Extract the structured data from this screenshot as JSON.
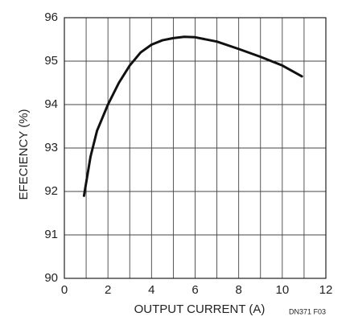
{
  "chart_data": {
    "type": "line",
    "x_label": "OUTPUT CURRENT (A)",
    "y_label": "EFECIENCY (%)",
    "annotation": "DN371 F03",
    "xlim": [
      0,
      12
    ],
    "xticks": [
      0,
      2,
      4,
      6,
      8,
      10,
      12
    ],
    "xminorticks": [
      1,
      3,
      5,
      7,
      9,
      11
    ],
    "ylim": [
      90,
      96
    ],
    "yticks": [
      90,
      91,
      92,
      93,
      94,
      95,
      96
    ],
    "grid": true,
    "series": [
      {
        "color": "#111111",
        "x": [
          0.9,
          1.2,
          1.5,
          2,
          2.5,
          3,
          3.5,
          4,
          4.5,
          5,
          5.5,
          6,
          7,
          8,
          9,
          10,
          10.9
        ],
        "values": [
          91.9,
          92.8,
          93.4,
          94.0,
          94.5,
          94.9,
          95.2,
          95.38,
          95.48,
          95.53,
          95.56,
          95.55,
          95.45,
          95.28,
          95.1,
          94.9,
          94.65
        ]
      }
    ]
  }
}
